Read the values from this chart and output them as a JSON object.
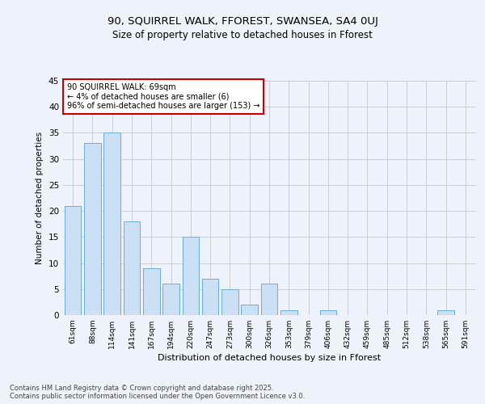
{
  "title1": "90, SQUIRREL WALK, FFOREST, SWANSEA, SA4 0UJ",
  "title2": "Size of property relative to detached houses in Fforest",
  "xlabel": "Distribution of detached houses by size in Fforest",
  "ylabel": "Number of detached properties",
  "categories": [
    "61sqm",
    "88sqm",
    "114sqm",
    "141sqm",
    "167sqm",
    "194sqm",
    "220sqm",
    "247sqm",
    "273sqm",
    "300sqm",
    "326sqm",
    "353sqm",
    "379sqm",
    "406sqm",
    "432sqm",
    "459sqm",
    "485sqm",
    "512sqm",
    "538sqm",
    "565sqm",
    "591sqm"
  ],
  "values": [
    21,
    33,
    35,
    18,
    9,
    6,
    15,
    7,
    5,
    2,
    6,
    1,
    0,
    1,
    0,
    0,
    0,
    0,
    0,
    1,
    0
  ],
  "bar_color": "#cce0f5",
  "bar_edge_color": "#6aaed6",
  "annotation_text": "90 SQUIRREL WALK: 69sqm\n← 4% of detached houses are smaller (6)\n96% of semi-detached houses are larger (153) →",
  "annotation_box_color": "#ffffff",
  "annotation_box_edge": "#cc0000",
  "ylim": [
    0,
    45
  ],
  "yticks": [
    0,
    5,
    10,
    15,
    20,
    25,
    30,
    35,
    40,
    45
  ],
  "footer_line1": "Contains HM Land Registry data © Crown copyright and database right 2025.",
  "footer_line2": "Contains public sector information licensed under the Open Government Licence v3.0.",
  "bg_color": "#eef2fa",
  "grid_color": "#c8c8c8"
}
